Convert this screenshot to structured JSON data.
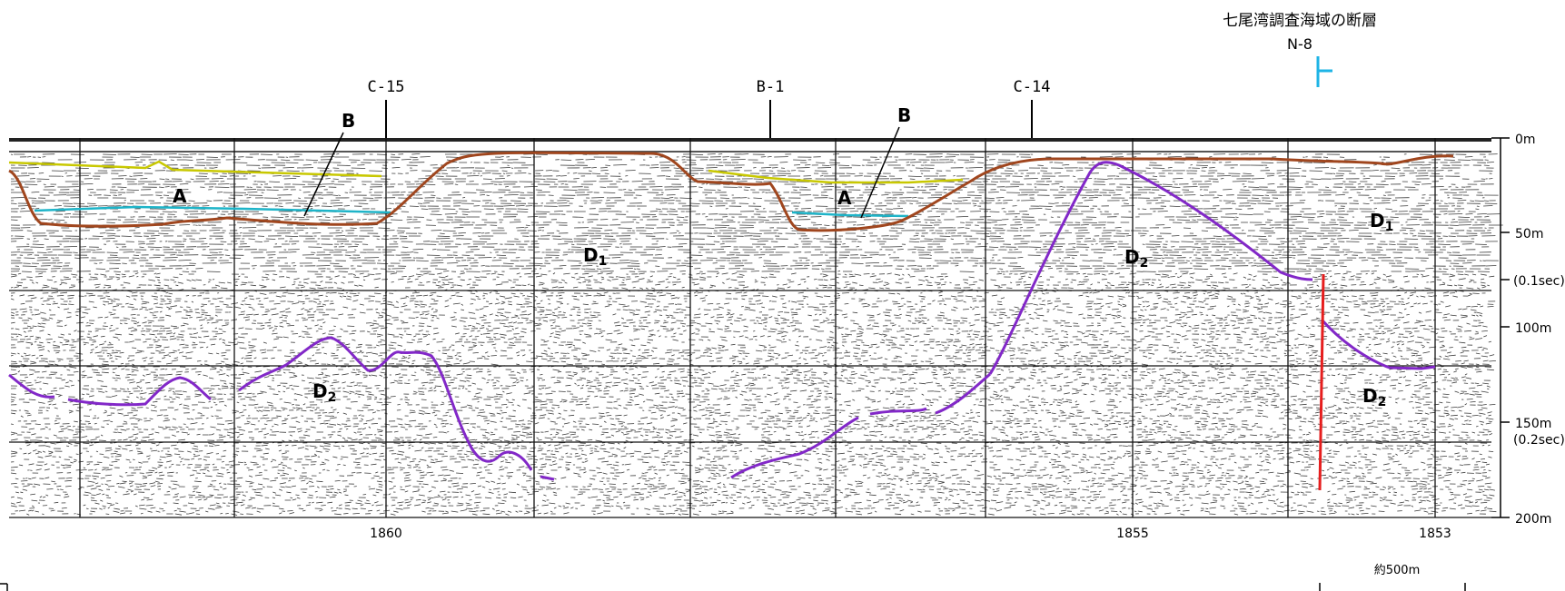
{
  "title": "七尾湾調査海域の断層",
  "fault": {
    "label": "N-8",
    "color": "#1eb4e6"
  },
  "crossings": [
    {
      "label": "C-15"
    },
    {
      "label": "B-1"
    },
    {
      "label": "C-14"
    }
  ],
  "depth_axis": {
    "ticks": [
      {
        "label": "0m"
      },
      {
        "label": "50m"
      },
      {
        "label": "(0.1sec)"
      },
      {
        "label": "100m"
      },
      {
        "label": "150m"
      },
      {
        "label": "(0.2sec)"
      },
      {
        "label": "200m"
      }
    ]
  },
  "shot_points": [
    {
      "label": "1860"
    },
    {
      "label": "1855"
    },
    {
      "label": "1853"
    }
  ],
  "scale_bar": {
    "label": "約500m"
  },
  "units": {
    "A1": "A",
    "A2": "A",
    "B1": "B",
    "B2": "B",
    "D1a": "D1",
    "D1b": "D1",
    "D2a": "D2",
    "D2b": "D2",
    "D2c": "D2"
  },
  "colors": {
    "A_top": "#c8c800",
    "B_top": "#1eb4c8",
    "D_top": "#a0461e",
    "D2_top": "#8228c8",
    "fault": "#e61e1e"
  }
}
